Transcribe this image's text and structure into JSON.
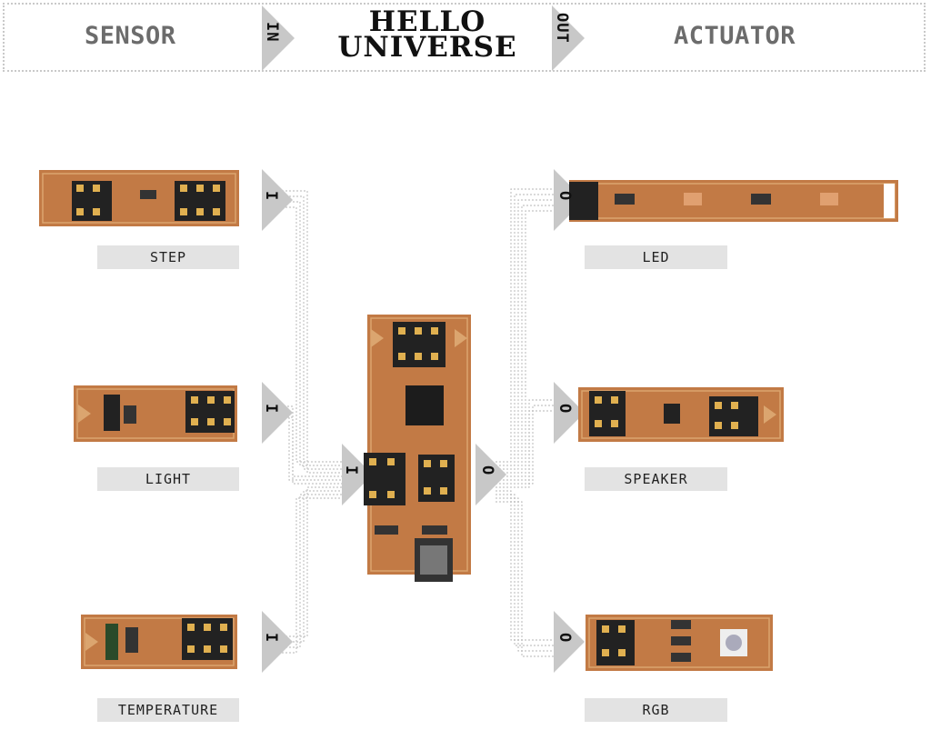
{
  "header": {
    "left_title": "SENSOR",
    "right_title": "ACTUATOR",
    "center_line1": "HELLO",
    "center_line2": "UNIVERSE",
    "in_label": "IN",
    "out_label": "OUT"
  },
  "inputs": [
    {
      "label": "STEP",
      "port": "I"
    },
    {
      "label": "LIGHT",
      "port": "I"
    },
    {
      "label": "TEMPERATURE",
      "port": "I"
    }
  ],
  "outputs": [
    {
      "label": "LED",
      "port": "O"
    },
    {
      "label": "SPEAKER",
      "port": "O"
    },
    {
      "label": "RGB",
      "port": "O"
    }
  ],
  "hub": {
    "in_port": "I",
    "out_port": "O"
  },
  "colors": {
    "pcb": "#c27a45",
    "copper": "#dba56f",
    "arrow": "#c8c8c8",
    "wire": "#c4c4c4",
    "label_bg": "#e3e3e3"
  }
}
